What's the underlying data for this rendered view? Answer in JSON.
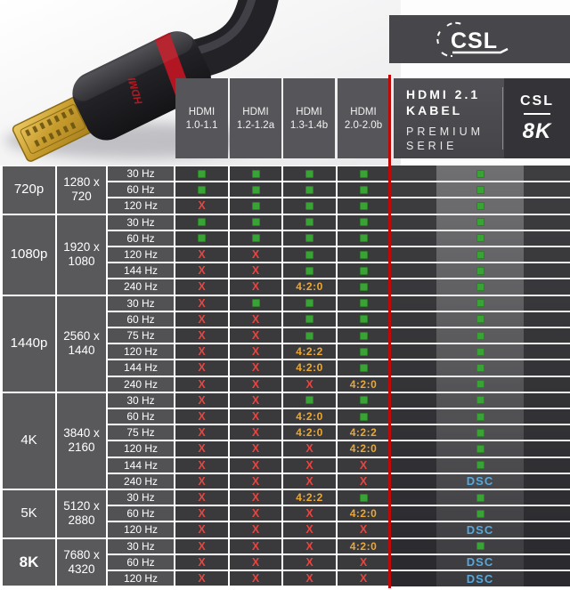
{
  "logo": {
    "text": "CSL"
  },
  "header": {
    "versions": [
      {
        "line1": "HDMI",
        "line2": "1.0-1.1"
      },
      {
        "line1": "HDMI",
        "line2": "1.2-1.2a"
      },
      {
        "line1": "HDMI",
        "line2": "1.3-1.4b"
      },
      {
        "line1": "HDMI",
        "line2": "2.0-2.0b"
      }
    ],
    "premium": {
      "title1": "HDMI 2.1",
      "title2": "KABEL",
      "sub1": "PREMIUM",
      "sub2": "SERIE",
      "brand": "CSL",
      "res": "8K"
    }
  },
  "legend": {
    "no_symbol": "X"
  },
  "colors": {
    "supported_green": "#3aa336",
    "not_supported_red": "#e8453f",
    "chroma_orange": "#eca832",
    "dsc_blue": "#55a9de",
    "divider_red": "#c10808"
  },
  "chart_data": {
    "type": "table",
    "columns": [
      "HDMI 1.0-1.1",
      "HDMI 1.2-1.2a",
      "HDMI 1.3-1.4b",
      "HDMI 2.0-2.0b",
      "HDMI 2.1 CSL 8K Premium Serie"
    ],
    "groups": [
      {
        "label": "720p",
        "resolution": "1280 x 720",
        "rows": [
          {
            "hz": "30 Hz",
            "marks": [
              "yes",
              "yes",
              "yes",
              "yes",
              "yes"
            ]
          },
          {
            "hz": "60 Hz",
            "marks": [
              "yes",
              "yes",
              "yes",
              "yes",
              "yes"
            ]
          },
          {
            "hz": "120 Hz",
            "marks": [
              "no",
              "yes",
              "yes",
              "yes",
              "yes"
            ]
          }
        ]
      },
      {
        "label": "1080p",
        "resolution": "1920 x 1080",
        "rows": [
          {
            "hz": "30 Hz",
            "marks": [
              "yes",
              "yes",
              "yes",
              "yes",
              "yes"
            ]
          },
          {
            "hz": "60 Hz",
            "marks": [
              "yes",
              "yes",
              "yes",
              "yes",
              "yes"
            ]
          },
          {
            "hz": "120 Hz",
            "marks": [
              "no",
              "no",
              "yes",
              "yes",
              "yes"
            ]
          },
          {
            "hz": "144 Hz",
            "marks": [
              "no",
              "no",
              "yes",
              "yes",
              "yes"
            ]
          },
          {
            "hz": "240 Hz",
            "marks": [
              "no",
              "no",
              "4:2:0",
              "yes",
              "yes"
            ]
          }
        ]
      },
      {
        "label": "1440p",
        "resolution": "2560 x 1440",
        "rows": [
          {
            "hz": "30 Hz",
            "marks": [
              "no",
              "yes",
              "yes",
              "yes",
              "yes"
            ]
          },
          {
            "hz": "60 Hz",
            "marks": [
              "no",
              "no",
              "yes",
              "yes",
              "yes"
            ]
          },
          {
            "hz": "75 Hz",
            "marks": [
              "no",
              "no",
              "yes",
              "yes",
              "yes"
            ]
          },
          {
            "hz": "120 Hz",
            "marks": [
              "no",
              "no",
              "4:2:2",
              "yes",
              "yes"
            ]
          },
          {
            "hz": "144 Hz",
            "marks": [
              "no",
              "no",
              "4:2:0",
              "yes",
              "yes"
            ]
          },
          {
            "hz": "240 Hz",
            "marks": [
              "no",
              "no",
              "no",
              "4:2:0",
              "yes"
            ]
          }
        ]
      },
      {
        "label": "4K",
        "resolution": "3840 x 2160",
        "rows": [
          {
            "hz": "30 Hz",
            "marks": [
              "no",
              "no",
              "yes",
              "yes",
              "yes"
            ]
          },
          {
            "hz": "60 Hz",
            "marks": [
              "no",
              "no",
              "4:2:0",
              "yes",
              "yes"
            ]
          },
          {
            "hz": "75 Hz",
            "marks": [
              "no",
              "no",
              "4:2:0",
              "4:2:2",
              "yes"
            ]
          },
          {
            "hz": "120 Hz",
            "marks": [
              "no",
              "no",
              "no",
              "4:2:0",
              "yes"
            ]
          },
          {
            "hz": "144 Hz",
            "marks": [
              "no",
              "no",
              "no",
              "no",
              "yes"
            ]
          },
          {
            "hz": "240 Hz",
            "marks": [
              "no",
              "no",
              "no",
              "no",
              "DSC"
            ]
          }
        ]
      },
      {
        "label": "5K",
        "resolution": "5120 x 2880",
        "rows": [
          {
            "hz": "30 Hz",
            "marks": [
              "no",
              "no",
              "4:2:2",
              "yes",
              "yes"
            ]
          },
          {
            "hz": "60 Hz",
            "marks": [
              "no",
              "no",
              "no",
              "4:2:0",
              "yes"
            ]
          },
          {
            "hz": "120 Hz",
            "marks": [
              "no",
              "no",
              "no",
              "no",
              "DSC"
            ]
          }
        ]
      },
      {
        "label": "8K",
        "emphasis": true,
        "resolution": "7680 x 4320",
        "rows": [
          {
            "hz": "30 Hz",
            "marks": [
              "no",
              "no",
              "no",
              "4:2:0",
              "yes"
            ]
          },
          {
            "hz": "60 Hz",
            "marks": [
              "no",
              "no",
              "no",
              "no",
              "DSC"
            ]
          },
          {
            "hz": "120 Hz",
            "marks": [
              "no",
              "no",
              "no",
              "no",
              "DSC"
            ]
          }
        ]
      }
    ]
  }
}
